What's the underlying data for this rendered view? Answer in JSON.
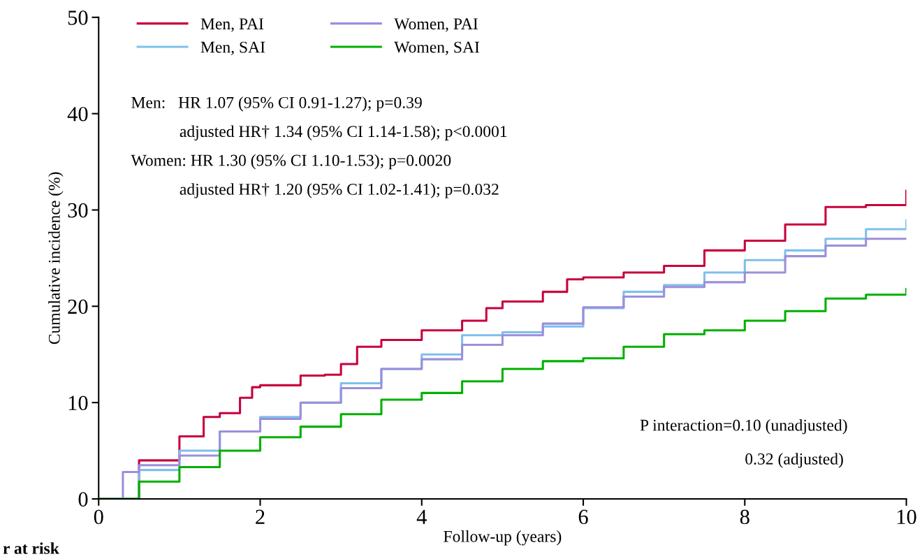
{
  "chart_data": {
    "type": "step",
    "xlabel": "Follow-up (years)",
    "ylabel": "Cumulative incidence (%)",
    "xlim": [
      0,
      10
    ],
    "ylim": [
      0,
      50
    ],
    "xticks": [
      0,
      2,
      4,
      6,
      8,
      10
    ],
    "yticks": [
      0,
      10,
      20,
      30,
      40,
      50
    ],
    "grid": false,
    "legend": "top left",
    "line_style": "solid",
    "marker": "none",
    "series": [
      {
        "name": "Men, PAI",
        "color": "#c8003c",
        "x": [
          0,
          0.5,
          1.0,
          1.3,
          1.5,
          1.75,
          1.9,
          2.0,
          2.5,
          2.8,
          3.0,
          3.2,
          3.5,
          4.0,
          4.5,
          4.8,
          5.0,
          5.5,
          5.8,
          6.0,
          6.5,
          7.0,
          7.5,
          8.0,
          8.5,
          9.0,
          9.5,
          10
        ],
        "values": [
          0,
          4,
          6.5,
          8.5,
          8.9,
          10.5,
          11.6,
          11.8,
          12.8,
          12.9,
          14,
          15.8,
          16.5,
          17.5,
          18.5,
          19.8,
          20.5,
          21.5,
          22.8,
          23,
          23.5,
          24.2,
          25.8,
          26.8,
          28.5,
          30.3,
          30.5,
          32
        ]
      },
      {
        "name": "Men, SAI",
        "color": "#7fbfeb",
        "x": [
          0,
          0.5,
          1.0,
          1.5,
          2.0,
          2.5,
          3.0,
          3.5,
          4.0,
          4.5,
          5.0,
          5.5,
          6.0,
          6.5,
          7.0,
          7.5,
          8.0,
          8.5,
          9.0,
          9.5,
          10
        ],
        "values": [
          0,
          3,
          5,
          7,
          8.5,
          10,
          12,
          13.5,
          15,
          17,
          17.3,
          17.9,
          19.8,
          21.5,
          22.2,
          23.5,
          24.8,
          25.8,
          27,
          28,
          28.9
        ]
      },
      {
        "name": "Women, PAI",
        "color": "#9b8fdb",
        "x": [
          0,
          0.3,
          0.5,
          1.0,
          1.5,
          2.0,
          2.5,
          3.0,
          3.5,
          4.0,
          4.5,
          5.0,
          5.5,
          6.0,
          6.5,
          7.0,
          7.5,
          8.0,
          8.5,
          9.0,
          9.5,
          10
        ],
        "values": [
          0,
          2.8,
          3.5,
          4.5,
          7,
          8.3,
          10,
          11.5,
          13.5,
          14.5,
          16,
          17,
          18.2,
          19.9,
          21,
          22,
          22.5,
          23.5,
          25.2,
          26.3,
          27,
          27
        ]
      },
      {
        "name": "Women, SAI",
        "color": "#00b000",
        "x": [
          0,
          0.5,
          1.0,
          1.5,
          2.0,
          2.5,
          3.0,
          3.5,
          4.0,
          4.5,
          5.0,
          5.5,
          6.0,
          6.5,
          7.0,
          7.5,
          8.0,
          8.5,
          9.0,
          9.5,
          10
        ],
        "values": [
          0,
          1.8,
          3.3,
          5,
          6.4,
          7.5,
          8.8,
          10.3,
          11,
          12.2,
          13.5,
          14.3,
          14.6,
          15.8,
          17.1,
          17.5,
          18.5,
          19.5,
          20.8,
          21.2,
          21.8
        ]
      }
    ],
    "annotations": [
      "Men:   HR 1.07 (95% CI 0.91-1.27); p=0.39",
      "adjusted HR† 1.34 (95% CI 1.14-1.58); p<0.0001",
      "Women: HR 1.30 (95% CI 1.10-1.53); p=0.0020",
      "adjusted HR† 1.20 (95% CI 1.02-1.41); p=0.032",
      "P interaction=0.10 (unadjusted)",
      "0.32 (adjusted)",
      "r at risk"
    ]
  }
}
